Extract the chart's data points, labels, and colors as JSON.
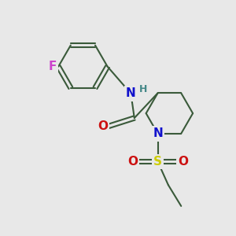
{
  "bg_color": "#e8e8e8",
  "bond_color": "#3a5a3a",
  "bond_width": 1.5,
  "F_color": "#cc44cc",
  "N_color": "#1111cc",
  "O_color": "#cc1111",
  "S_color": "#cccc00",
  "H_color": "#448888",
  "font_size_atom": 11,
  "font_size_H": 9,
  "figsize": [
    3.0,
    3.0
  ],
  "dpi": 100,
  "xlim": [
    0,
    10
  ],
  "ylim": [
    0,
    10
  ]
}
